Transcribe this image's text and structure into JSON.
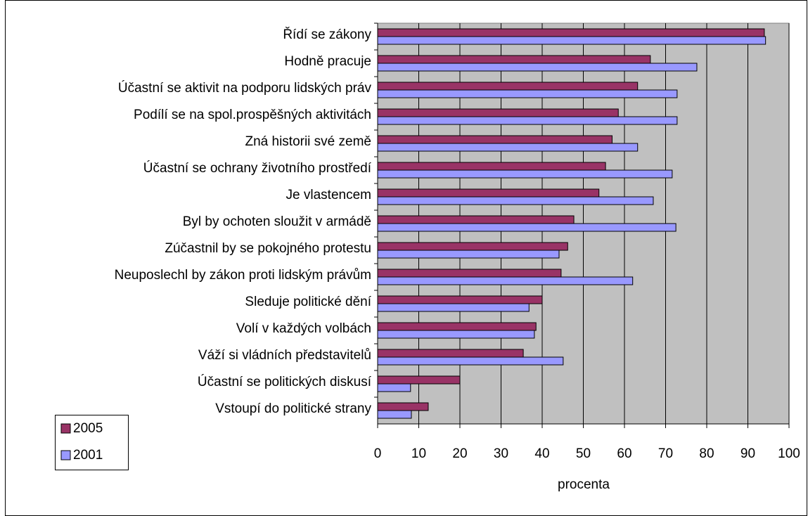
{
  "chart_data": {
    "type": "bar",
    "orientation": "horizontal",
    "x_axis_label": "procenta",
    "categories": [
      "Řídí se zákony",
      "Hodně pracuje",
      "Účastní se aktivit na podporu lidských práv",
      "Podílí se na spol.prospěšných aktivitách",
      "Zná historii své země",
      "Účastní se ochrany životního prostředí",
      "Je vlastencem",
      "Byl by ochoten sloužit v armádě",
      "Zúčastnil by se pokojného protestu",
      "Neuposlechl by zákon proti lidským právům",
      "Sleduje politické dění",
      "Volí v každých volbách",
      "Váží si vládních představitelů",
      "Účastní se politických diskusí",
      "Vstoupí do politické strany"
    ],
    "series": [
      {
        "name": "2005",
        "color": "#993366",
        "values": [
          94,
          66.3,
          63.2,
          58.5,
          57,
          55.4,
          53.8,
          47.7,
          46.2,
          44.6,
          40,
          38.5,
          35.4,
          20,
          12.3
        ]
      },
      {
        "name": "2001",
        "color": "#9999ff",
        "values": [
          94.3,
          77.6,
          72.8,
          72.8,
          63.2,
          71.6,
          67,
          72.5,
          44.1,
          62,
          36.8,
          38.1,
          45.1,
          8,
          8.2
        ]
      }
    ],
    "xlim": [
      0,
      100
    ],
    "xticks": [
      0,
      10,
      20,
      30,
      40,
      50,
      60,
      70,
      80,
      90,
      100
    ],
    "grid": true,
    "plot_background": "#c0c0c0",
    "legend_position": "lower left"
  }
}
